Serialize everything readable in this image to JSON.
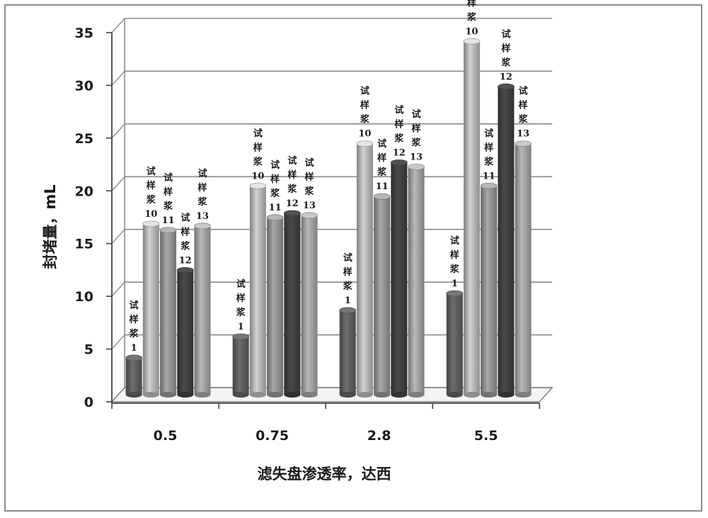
{
  "chart_data": {
    "type": "bar",
    "xlabel": "滤失盘渗透率，达西",
    "ylabel": "封堵量，mL",
    "ylim": [
      0,
      35
    ],
    "yticks": [
      0,
      5,
      10,
      15,
      20,
      25,
      30,
      35
    ],
    "grid": true,
    "categories": [
      "0.5",
      "0.75",
      "2.8",
      "5.5"
    ],
    "series": [
      {
        "name": "试样浆1",
        "values": [
          3.5,
          5.5,
          8.0,
          9.6
        ],
        "color": "#5c5c5c"
      },
      {
        "name": "试样浆10",
        "values": [
          16.2,
          19.8,
          23.8,
          33.5
        ],
        "color": "#b2b2b2"
      },
      {
        "name": "试样浆11",
        "values": [
          15.6,
          16.8,
          18.8,
          19.8
        ],
        "color": "#8e8e8e"
      },
      {
        "name": "试样浆12",
        "values": [
          11.8,
          17.2,
          22.0,
          29.2
        ],
        "color": "#3f3f3f"
      },
      {
        "name": "试样浆13",
        "values": [
          16.0,
          17.0,
          21.6,
          23.8
        ],
        "color": "#9d9d9d"
      }
    ],
    "bar_label_lines": [
      [
        "试",
        "样",
        "浆",
        "1"
      ],
      [
        "试",
        "样",
        "浆",
        "10"
      ],
      [
        "试",
        "样",
        "浆",
        "11"
      ],
      [
        "试",
        "样",
        "浆",
        "12"
      ],
      [
        "试",
        "样",
        "浆",
        "13"
      ]
    ]
  }
}
